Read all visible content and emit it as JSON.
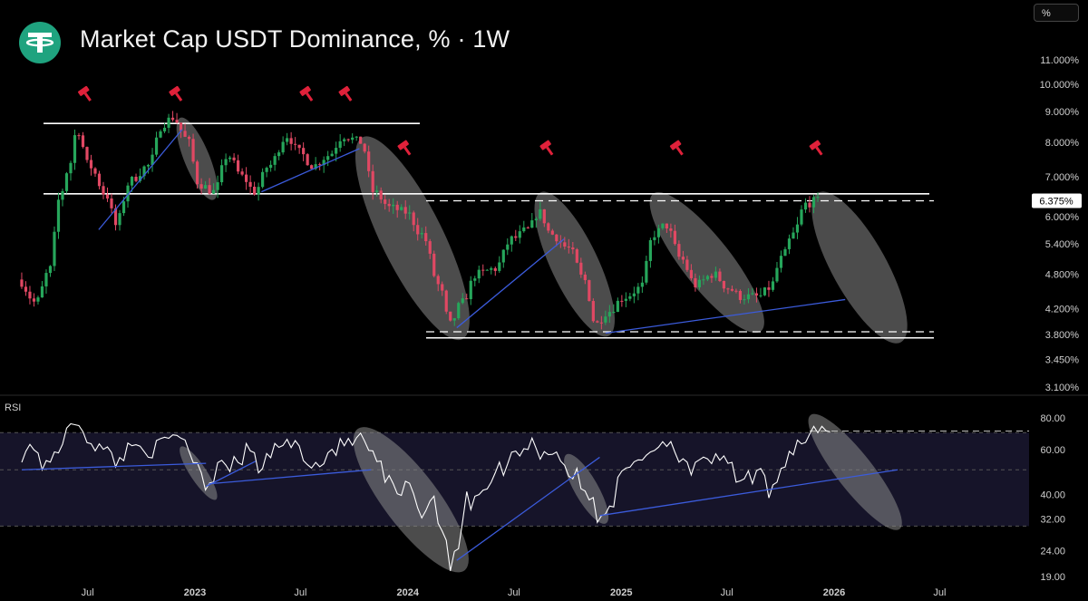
{
  "header": {
    "title": "Market Cap USDT Dominance, % · 1W",
    "unit_button": "%"
  },
  "colors": {
    "background": "#000000",
    "up_candle": "#26a65b",
    "down_candle": "#e04863",
    "rsi_line": "#ffffff",
    "trendline": "#3b5bdb",
    "range_line": "#ffffff",
    "ellipse": "#8a8a8a",
    "marker": "#e0213a",
    "rsi_band": "#1a1730"
  },
  "chart_data": [
    {
      "type": "candlestick",
      "title": "Market Cap USDT Dominance, % · 1W",
      "ylabel": "%",
      "y_scale": "log",
      "ylim": [
        3.1,
        11.5
      ],
      "yticks": [
        "11.000%",
        "10.000%",
        "9.000%",
        "8.000%",
        "7.000%",
        "6.000%",
        "5.400%",
        "4.800%",
        "4.200%",
        "3.800%",
        "3.450%",
        "3.100%"
      ],
      "ytick_values": [
        11.0,
        10.0,
        9.0,
        8.0,
        7.0,
        6.0,
        5.4,
        4.8,
        4.2,
        3.8,
        3.45,
        3.1
      ],
      "x_ticks": [
        "Jul",
        "2023",
        "Jul",
        "2024",
        "Jul",
        "2025",
        "Jul",
        "2026",
        "Jul"
      ],
      "x_tick_dates": [
        "2022-07-01",
        "2023-01-01",
        "2023-07-01",
        "2024-01-01",
        "2024-07-01",
        "2025-01-01",
        "2025-07-01",
        "2026-01-01",
        "2026-07-01"
      ],
      "current_value_label": "6.375%",
      "current_value": 6.375,
      "anchor_points": [
        [
          "2022-03-10",
          4.7
        ],
        [
          "2022-04-10",
          4.3
        ],
        [
          "2022-05-05",
          4.9
        ],
        [
          "2022-05-20",
          6.4
        ],
        [
          "2022-06-05",
          7.2
        ],
        [
          "2022-06-20",
          8.4
        ],
        [
          "2022-07-10",
          7.3
        ],
        [
          "2022-08-10",
          6.5
        ],
        [
          "2022-08-25",
          5.8
        ],
        [
          "2022-09-20",
          6.9
        ],
        [
          "2022-10-20",
          7.3
        ],
        [
          "2022-11-15",
          8.6
        ],
        [
          "2022-12-01",
          8.8
        ],
        [
          "2022-12-25",
          8.1
        ],
        [
          "2023-01-15",
          6.8
        ],
        [
          "2023-02-10",
          6.6
        ],
        [
          "2023-03-05",
          7.6
        ],
        [
          "2023-03-30",
          7.0
        ],
        [
          "2023-04-20",
          6.6
        ],
        [
          "2023-05-15",
          7.3
        ],
        [
          "2023-06-15",
          8.2
        ],
        [
          "2023-07-05",
          7.7
        ],
        [
          "2023-07-30",
          7.3
        ],
        [
          "2023-08-25",
          7.6
        ],
        [
          "2023-09-20",
          8.2
        ],
        [
          "2023-10-20",
          8.0
        ],
        [
          "2023-11-10",
          6.6
        ],
        [
          "2023-12-10",
          6.2
        ],
        [
          "2024-01-05",
          6.1
        ],
        [
          "2024-02-01",
          5.6
        ],
        [
          "2024-03-01",
          4.6
        ],
        [
          "2024-03-20",
          3.95
        ],
        [
          "2024-04-10",
          4.3
        ],
        [
          "2024-05-05",
          4.8
        ],
        [
          "2024-06-05",
          4.9
        ],
        [
          "2024-07-05",
          5.5
        ],
        [
          "2024-08-01",
          5.7
        ],
        [
          "2024-08-20",
          6.1
        ],
        [
          "2024-09-10",
          5.6
        ],
        [
          "2024-10-10",
          5.3
        ],
        [
          "2024-11-05",
          4.7
        ],
        [
          "2024-11-25",
          3.95
        ],
        [
          "2024-12-15",
          4.15
        ],
        [
          "2025-01-15",
          4.4
        ],
        [
          "2025-02-10",
          4.55
        ],
        [
          "2025-03-05",
          5.6
        ],
        [
          "2025-03-25",
          5.8
        ],
        [
          "2025-04-20",
          5.1
        ],
        [
          "2025-05-15",
          4.6
        ],
        [
          "2025-06-15",
          4.8
        ],
        [
          "2025-07-10",
          4.55
        ],
        [
          "2025-08-01",
          4.4
        ],
        [
          "2025-09-01",
          4.4
        ],
        [
          "2025-09-20",
          4.55
        ],
        [
          "2025-10-10",
          5.1
        ],
        [
          "2025-10-30",
          5.6
        ],
        [
          "2025-11-20",
          6.3
        ],
        [
          "2025-12-10",
          6.375
        ]
      ],
      "range_levels": [
        8.6,
        6.55,
        6.375,
        3.8,
        3.75
      ],
      "annotations": [
        "red gavel markers at range highs",
        "grey ellipses marking declines",
        "blue rising trendlines"
      ]
    },
    {
      "type": "line",
      "title": "RSI",
      "ylim": [
        19,
        84
      ],
      "yticks": [
        "80.00",
        "60.00",
        "40.00",
        "32.00",
        "24.00",
        "19.00"
      ],
      "ytick_values": [
        80,
        60,
        40,
        32,
        24,
        19
      ],
      "bands": [
        70,
        50,
        30
      ],
      "anchor_points": [
        [
          "2022-03-10",
          58
        ],
        [
          "2022-04-01",
          62
        ],
        [
          "2022-04-20",
          50
        ],
        [
          "2022-05-10",
          60
        ],
        [
          "2022-05-25",
          70
        ],
        [
          "2022-06-15",
          77
        ],
        [
          "2022-07-05",
          65
        ],
        [
          "2022-07-25",
          60
        ],
        [
          "2022-08-20",
          55
        ],
        [
          "2022-09-20",
          63
        ],
        [
          "2022-10-20",
          60
        ],
        [
          "2022-11-20",
          66
        ],
        [
          "2022-12-10",
          68
        ],
        [
          "2023-01-05",
          52
        ],
        [
          "2023-01-25",
          44
        ],
        [
          "2023-02-15",
          56
        ],
        [
          "2023-03-10",
          52
        ],
        [
          "2023-04-05",
          60
        ],
        [
          "2023-04-25",
          50
        ],
        [
          "2023-05-20",
          62
        ],
        [
          "2023-06-15",
          64
        ],
        [
          "2023-07-05",
          58
        ],
        [
          "2023-07-30",
          52
        ],
        [
          "2023-08-25",
          60
        ],
        [
          "2023-09-20",
          64
        ],
        [
          "2023-10-15",
          66
        ],
        [
          "2023-11-05",
          55
        ],
        [
          "2023-11-25",
          46
        ],
        [
          "2023-12-15",
          38
        ],
        [
          "2024-01-05",
          44
        ],
        [
          "2024-01-25",
          34
        ],
        [
          "2024-02-15",
          38
        ],
        [
          "2024-03-05",
          27
        ],
        [
          "2024-03-20",
          22
        ],
        [
          "2024-04-15",
          38
        ],
        [
          "2024-05-05",
          42
        ],
        [
          "2024-05-25",
          46
        ],
        [
          "2024-06-15",
          52
        ],
        [
          "2024-07-10",
          60
        ],
        [
          "2024-07-30",
          64
        ],
        [
          "2024-08-20",
          58
        ],
        [
          "2024-09-10",
          60
        ],
        [
          "2024-09-30",
          50
        ],
        [
          "2024-10-20",
          46
        ],
        [
          "2024-11-05",
          38
        ],
        [
          "2024-11-25",
          34
        ],
        [
          "2024-12-15",
          38
        ],
        [
          "2025-01-10",
          50
        ],
        [
          "2025-02-01",
          56
        ],
        [
          "2025-02-25",
          60
        ],
        [
          "2025-03-15",
          66
        ],
        [
          "2025-04-10",
          58
        ],
        [
          "2025-05-05",
          50
        ],
        [
          "2025-05-25",
          52
        ],
        [
          "2025-06-15",
          58
        ],
        [
          "2025-07-05",
          50
        ],
        [
          "2025-07-25",
          44
        ],
        [
          "2025-08-20",
          48
        ],
        [
          "2025-09-10",
          42
        ],
        [
          "2025-09-30",
          50
        ],
        [
          "2025-10-20",
          60
        ],
        [
          "2025-11-10",
          66
        ],
        [
          "2025-11-25",
          72
        ],
        [
          "2025-12-10",
          70
        ],
        [
          "2025-12-25",
          71
        ]
      ]
    }
  ]
}
